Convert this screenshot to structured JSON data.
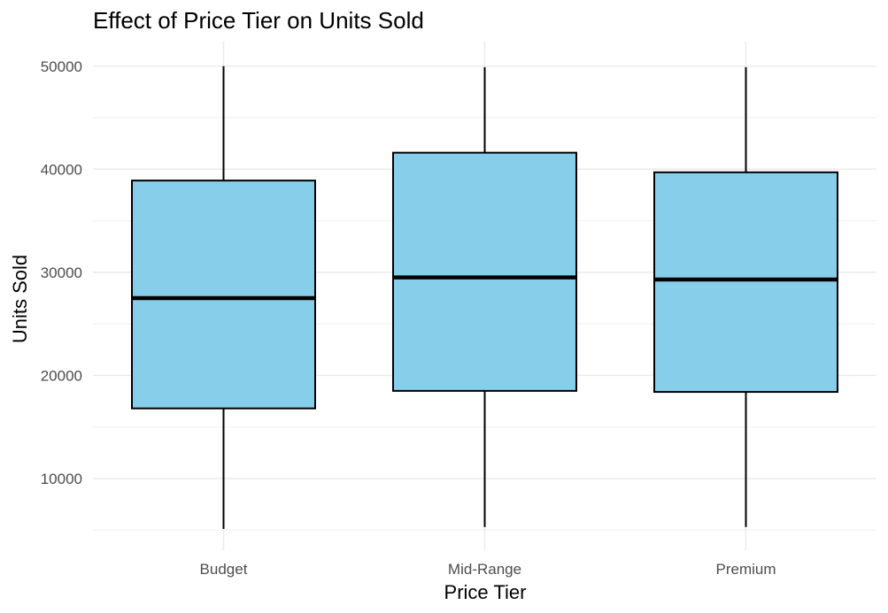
{
  "chart_data": {
    "type": "boxplot",
    "title": "Effect of Price Tier on Units Sold",
    "xlabel": "Price Tier",
    "ylabel": "Units Sold",
    "ylim": [
      0,
      52000
    ],
    "yticks": [
      10000,
      20000,
      30000,
      40000,
      50000
    ],
    "grid": true,
    "categories": [
      "Budget",
      "Mid-Range",
      "Premium"
    ],
    "boxes": [
      {
        "category": "Budget",
        "min": 5100,
        "q1": 16800,
        "median": 27500,
        "q3": 38900,
        "max": 50000
      },
      {
        "category": "Mid-Range",
        "min": 5300,
        "q1": 18500,
        "median": 29500,
        "q3": 41600,
        "max": 49900
      },
      {
        "category": "Premium",
        "min": 5300,
        "q1": 18400,
        "median": 29300,
        "q3": 39700,
        "max": 49900
      }
    ],
    "colors": {
      "box_fill": "#87CEEB",
      "box_stroke": "#000000"
    }
  }
}
